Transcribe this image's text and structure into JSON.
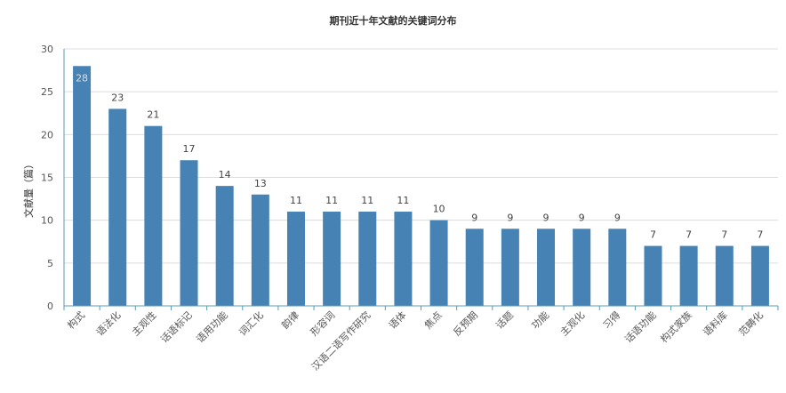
{
  "chart_data": {
    "type": "bar",
    "title": "期刊近十年文献的关键词分布",
    "xlabel": "",
    "ylabel": "文献量（篇）",
    "ylim": [
      0,
      30
    ],
    "yticks": [
      0,
      5,
      10,
      15,
      20,
      25,
      30
    ],
    "grid": true,
    "legend": "none",
    "bar_color": "#4682b4",
    "categories": [
      "构式",
      "语法化",
      "主观性",
      "话语标记",
      "语用功能",
      "词汇化",
      "韵律",
      "形容词",
      "汉语二语写作研究",
      "语体",
      "焦点",
      "反预期",
      "话题",
      "功能",
      "主观化",
      "习得",
      "话语功能",
      "构式家族",
      "语料库",
      "范畴化"
    ],
    "values": [
      28,
      23,
      21,
      17,
      14,
      13,
      11,
      11,
      11,
      11,
      10,
      9,
      9,
      9,
      9,
      9,
      7,
      7,
      7,
      7
    ]
  }
}
